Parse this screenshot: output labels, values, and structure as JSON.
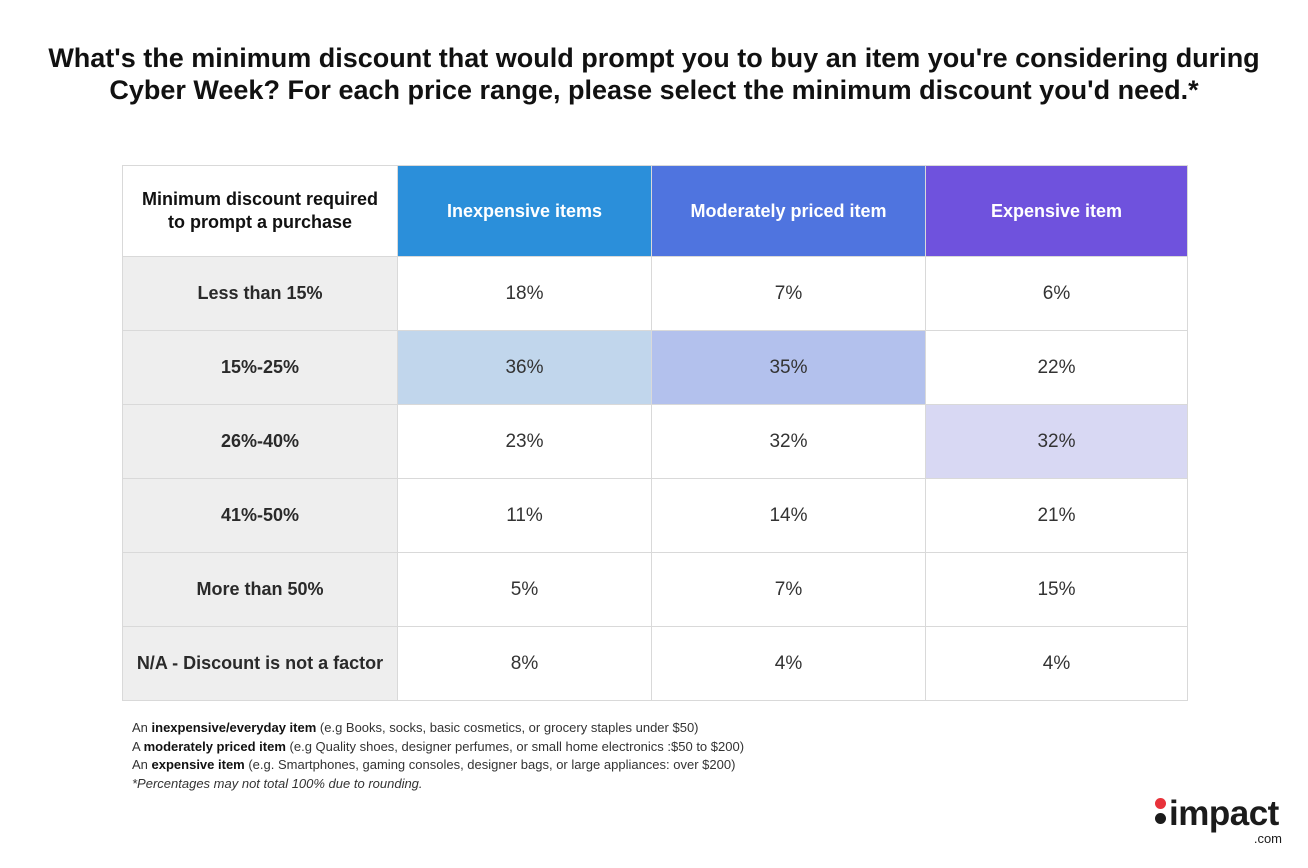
{
  "title_line1": "What's the minimum discount that would prompt you to buy an item you're considering during",
  "title_line2": "Cyber Week? For each price range, please select the minimum discount you'd need.*",
  "chart_data": {
    "type": "table",
    "corner_header_line1": "Minimum discount required",
    "corner_header_line2": "to prompt a purchase",
    "columns": [
      {
        "label": "Inexpensive items",
        "color": "#2b8fda"
      },
      {
        "label": "Moderately priced item",
        "color": "#4f74df"
      },
      {
        "label": "Expensive item",
        "color": "#6f52dd"
      }
    ],
    "rows": [
      {
        "label": "Less than 15%",
        "values": [
          "18%",
          "7%",
          "6%"
        ],
        "values_num": [
          18,
          7,
          6
        ]
      },
      {
        "label": "15%-25%",
        "values": [
          "36%",
          "35%",
          "22%"
        ],
        "values_num": [
          36,
          35,
          22
        ]
      },
      {
        "label": "26%-40%",
        "values": [
          "23%",
          "32%",
          "32%"
        ],
        "values_num": [
          23,
          32,
          32
        ]
      },
      {
        "label": "41%-50%",
        "values": [
          "11%",
          "14%",
          "21%"
        ],
        "values_num": [
          11,
          14,
          21
        ]
      },
      {
        "label": "More than 50%",
        "values": [
          "5%",
          "7%",
          "15%"
        ],
        "values_num": [
          5,
          7,
          15
        ]
      },
      {
        "label": "N/A - Discount is not a factor",
        "values": [
          "8%",
          "4%",
          "4%"
        ],
        "values_num": [
          8,
          4,
          4
        ]
      }
    ],
    "highlight_colors": [
      "#c1d6ec",
      "#b3c1ed",
      "#d8d8f3"
    ]
  },
  "notes": [
    {
      "prefix": "An ",
      "bold": "inexpensive/everyday item",
      "rest": " (e.g Books, socks, basic cosmetics, or grocery staples under $50)"
    },
    {
      "prefix": "A ",
      "bold": "moderately priced item",
      "rest": " (e.g Quality shoes, designer perfumes, or small home electronics :$50 to $200)"
    },
    {
      "prefix": "An ",
      "bold": "expensive item",
      "rest": " (e.g. Smartphones, gaming consoles, designer bags, or large appliances: over $200)"
    }
  ],
  "footnote": "*Percentages may not total 100% due to rounding.",
  "logo": {
    "word": "impact",
    "suffix": ".com"
  }
}
